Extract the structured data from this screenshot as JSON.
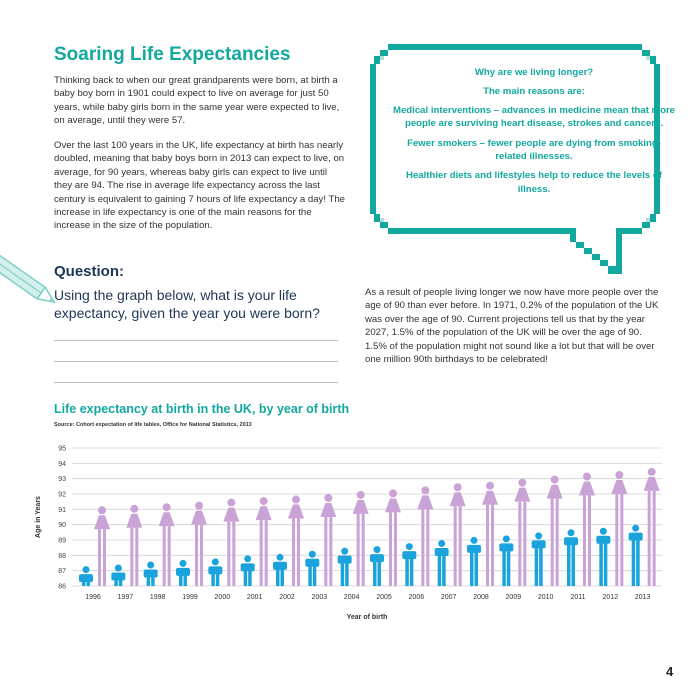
{
  "page": {
    "title": "Soaring Life Expectancies",
    "intro_paragraph": "Thinking back to when our great grandparents were born, at birth a baby boy born in 1901 could expect to live on average for just 50 years, while baby girls born in the same year were expected to live, on average, until they were 57.",
    "second_paragraph": "Over the last 100 years in the UK, life expectancy at birth has nearly doubled, meaning that baby boys born in 2013 can expect to live, on average, for 90 years, whereas baby girls can expect to live until they are 94. The rise in average life expectancy across the last century is equivalent to gaining 7 hours of life expectancy a day! The increase in life expectancy is one of the main reasons for the increase in the size of the population.",
    "question_heading": "Question:",
    "question_text": "Using the graph below, what is your life expectancy, given the year you were born?",
    "page_number": "4"
  },
  "speech_bubble": {
    "heading": "Why are we living longer?",
    "subheading": "The main reasons are:",
    "reasons": [
      "Medical interventions – advances in medicine mean that more people are surviving heart disease, strokes and cancers.",
      "Fewer smokers – fewer people are dying from smoking-related illnesses.",
      "Healthier diets and lifestyles help to reduce the levels of illness."
    ]
  },
  "right_paragraph": "As a result of people living longer we now have more people over the age of 90 than ever before. In 1971, 0.2% of the population of the UK was over the age of 90. Current projections tell us that by the year 2027, 1.5% of the population of the UK will be over the age of 90. 1.5% of the population might not sound like a lot but that will be over one million 90th birthdays to be celebrated!",
  "colors": {
    "accent": "#12a89d",
    "navy": "#1d3557",
    "male": "#1aa3dd",
    "female": "#c9a3d6"
  },
  "chart_data": {
    "type": "bar",
    "title": "Life expectancy at birth in the UK, by year of birth",
    "source": "Source: Cohort expectation of life tables, Office for National Statistics, 2013",
    "xlabel": "Year of birth",
    "ylabel": "Age in Years",
    "ylim": [
      86,
      95
    ],
    "y_ticks": [
      "86",
      "87",
      "88",
      "89",
      "90",
      "91",
      "92",
      "93",
      "94",
      "95"
    ],
    "categories": [
      "1996",
      "1997",
      "1998",
      "1999",
      "2000",
      "2001",
      "2002",
      "2003",
      "2004",
      "2005",
      "2006",
      "2007",
      "2008",
      "2009",
      "2010",
      "2011",
      "2012",
      "2013"
    ],
    "grid": true,
    "series": [
      {
        "name": "Male",
        "icon": "male-figure-icon",
        "values": [
          87.3,
          87.4,
          87.6,
          87.7,
          87.8,
          88.0,
          88.1,
          88.3,
          88.5,
          88.6,
          88.8,
          89.0,
          89.2,
          89.3,
          89.5,
          89.7,
          89.8,
          90.0
        ]
      },
      {
        "name": "Female",
        "icon": "female-figure-icon",
        "values": [
          91.2,
          91.3,
          91.4,
          91.5,
          91.7,
          91.8,
          91.9,
          92.0,
          92.2,
          92.3,
          92.5,
          92.7,
          92.8,
          93.0,
          93.2,
          93.4,
          93.5,
          93.7
        ]
      }
    ]
  }
}
